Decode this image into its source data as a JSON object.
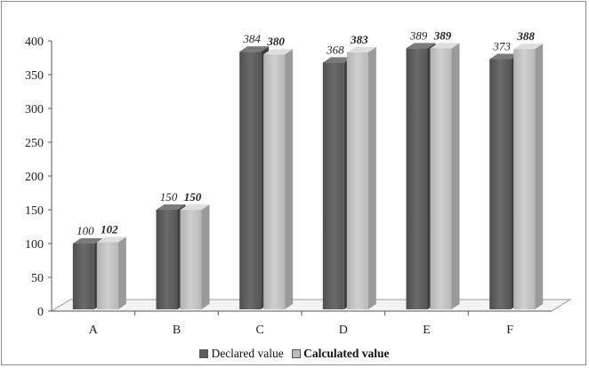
{
  "chart_data": {
    "type": "bar",
    "categories": [
      "A",
      "B",
      "C",
      "D",
      "E",
      "F"
    ],
    "series": [
      {
        "name": "Declared value",
        "values": [
          100,
          150,
          384,
          368,
          389,
          373
        ],
        "color": "#5d5d5d",
        "label_style": "italic"
      },
      {
        "name": "Calculated value",
        "values": [
          102,
          150,
          380,
          383,
          389,
          388
        ],
        "color": "#bdbdbd",
        "label_style": "bold-italic"
      }
    ],
    "ylim": [
      0,
      400
    ],
    "yticks": [
      0,
      50,
      100,
      150,
      200,
      250,
      300,
      350,
      400
    ],
    "style": "3d-column",
    "legend_position": "bottom"
  }
}
